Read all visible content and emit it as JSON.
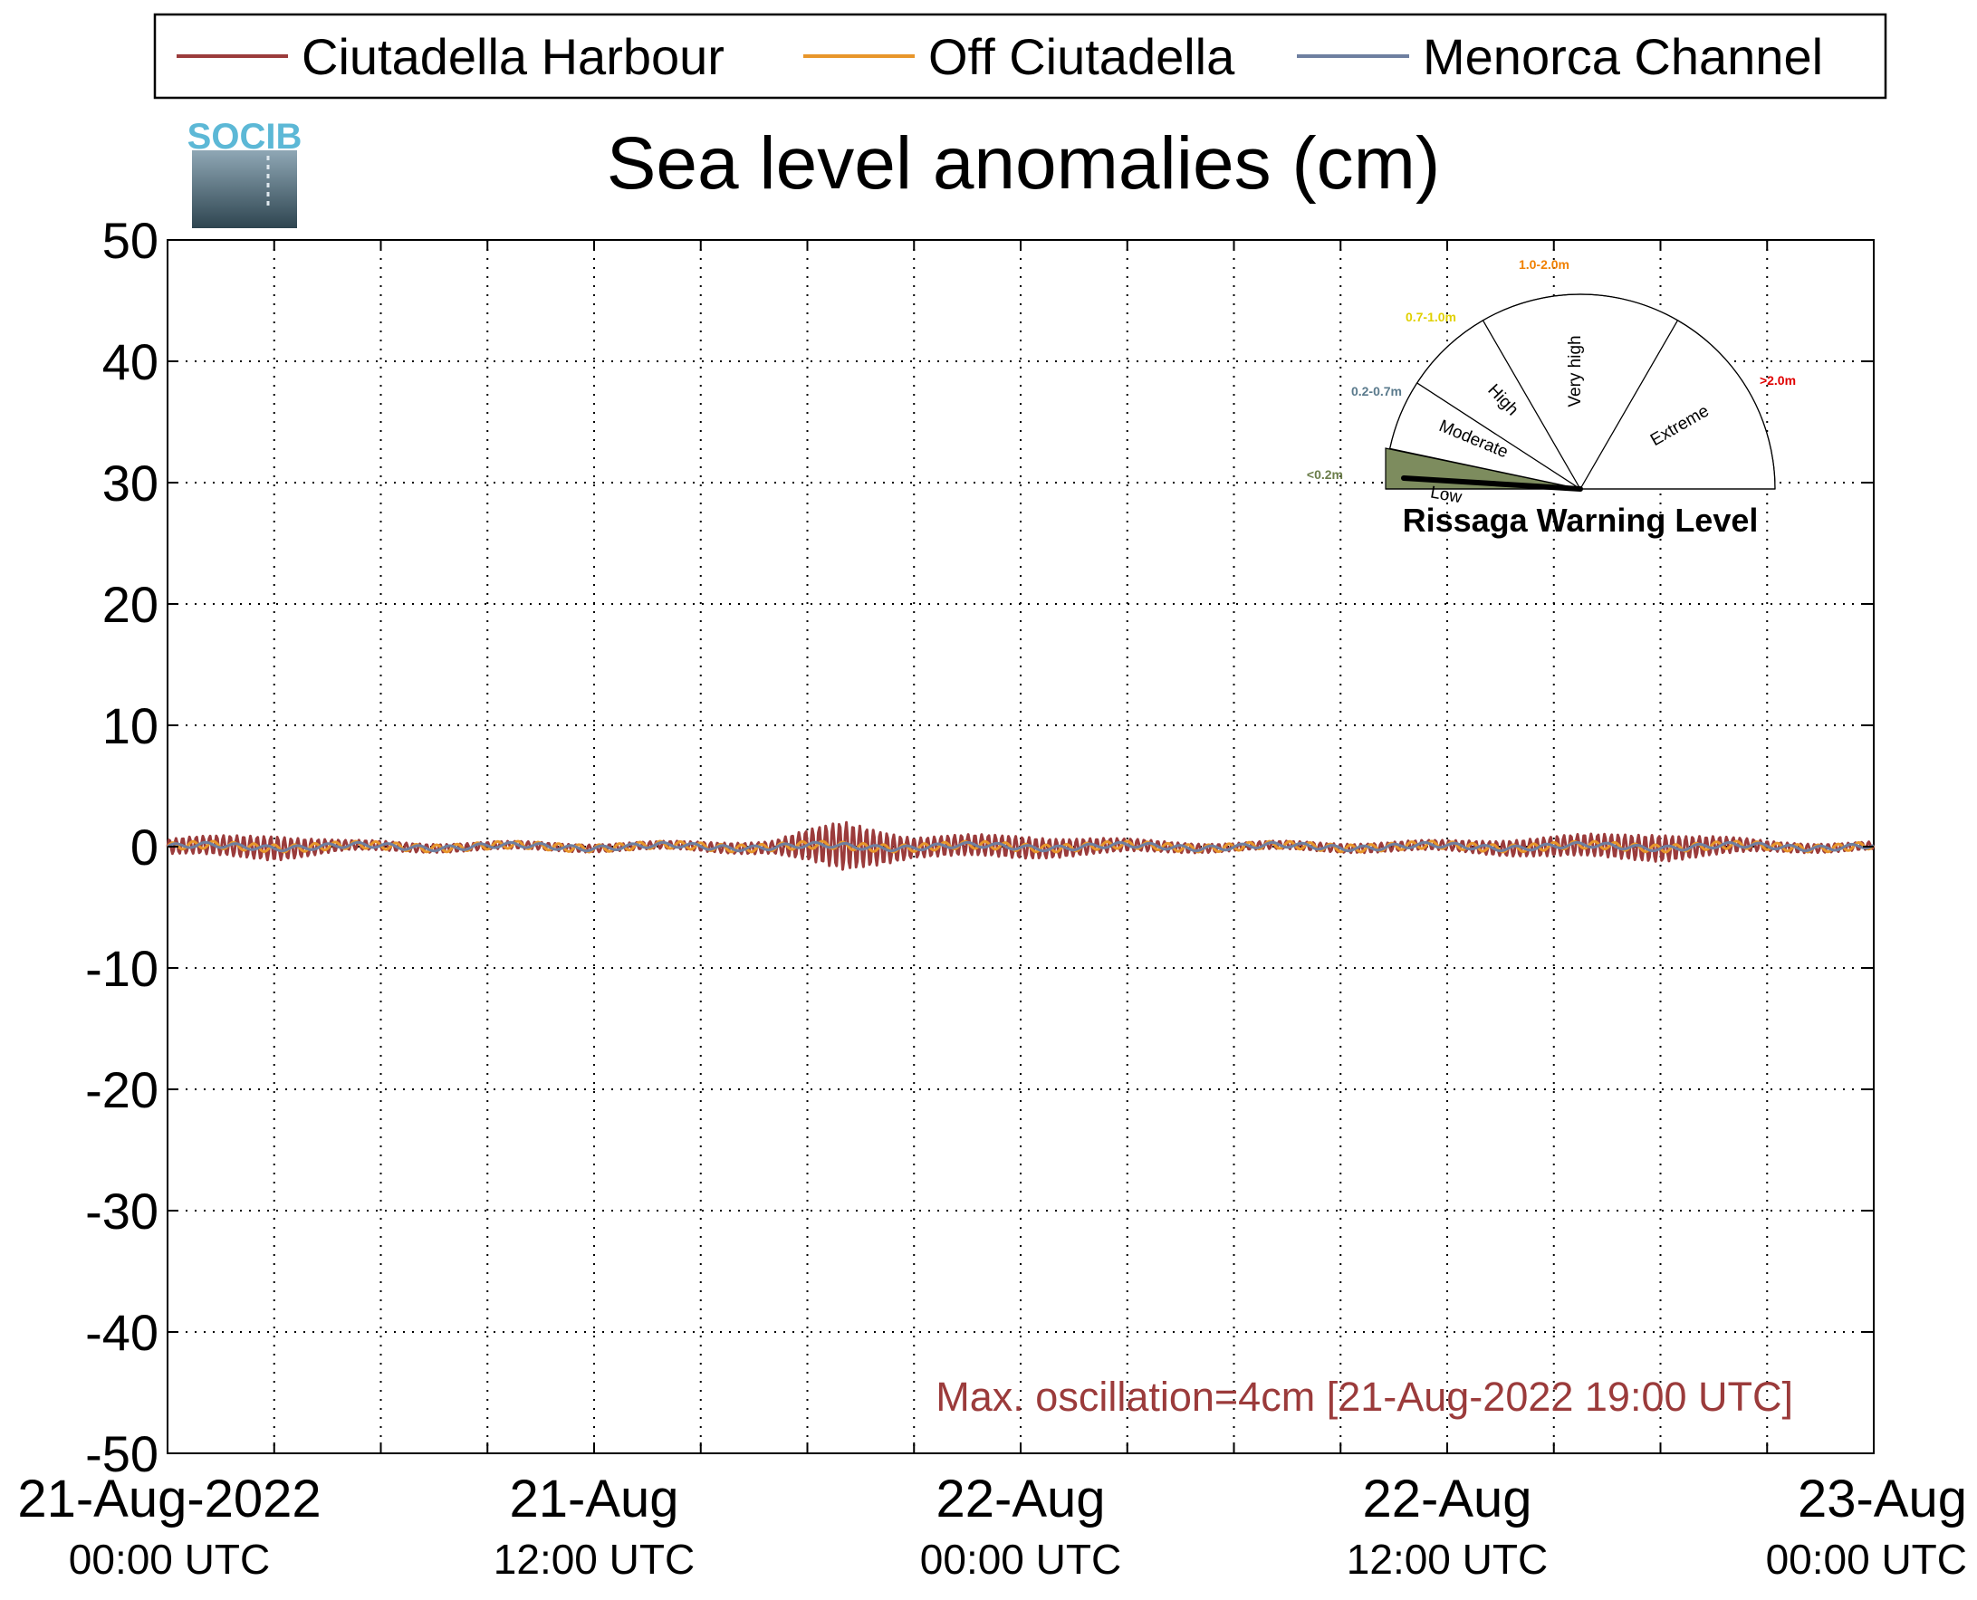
{
  "legend": {
    "entries": [
      {
        "name": "Ciutadella Harbour",
        "color": "#9b3b3b"
      },
      {
        "name": "Off Ciutadella",
        "color": "#e8962a"
      },
      {
        "name": "Menorca Channel",
        "color": "#6e7fa0"
      }
    ],
    "placement": "top"
  },
  "logo": {
    "text": "SOCIB",
    "icon": "socib-logo-icon"
  },
  "gauge": {
    "title": "Rissaga Warning Level",
    "levels": [
      {
        "name": "Low",
        "range": "<0.2m",
        "color": "#7d8c5e",
        "range_color": "#6b7d4a",
        "active": true
      },
      {
        "name": "Moderate",
        "range": "0.2-0.7m",
        "color": "#ffffff",
        "range_color": "#5a7a8c",
        "active": false
      },
      {
        "name": "High",
        "range": "0.7-1.0m",
        "color": "#ffffff",
        "range_color": "#e0d000",
        "active": false
      },
      {
        "name": "Very high",
        "range": "1.0-2.0m",
        "color": "#ffffff",
        "range_color": "#f08000",
        "active": false
      },
      {
        "name": "Extreme",
        "range": ">2.0m",
        "color": "#ffffff",
        "range_color": "#e00000",
        "active": false
      }
    ],
    "needle_level": "Low"
  },
  "annotation": {
    "text": "Max. oscillation=4cm [21-Aug-2022 19:00 UTC]",
    "color": "#9b3b3b"
  },
  "chart_data": {
    "type": "line",
    "title": "Sea level anomalies (cm)",
    "xlabel": "",
    "ylabel": "",
    "ylim": [
      -50,
      50
    ],
    "yticks": [
      -50,
      -40,
      -30,
      -20,
      -10,
      0,
      10,
      20,
      30,
      40,
      50
    ],
    "xlim": [
      "2022-08-21 00:00",
      "2022-08-23 00:00"
    ],
    "xticks": [
      {
        "at": "2022-08-21 00:00",
        "line1": "21-Aug-2022",
        "line2": "00:00 UTC"
      },
      {
        "at": "2022-08-21 12:00",
        "line1": "21-Aug",
        "line2": "12:00 UTC"
      },
      {
        "at": "2022-08-22 00:00",
        "line1": "22-Aug",
        "line2": "00:00 UTC"
      },
      {
        "at": "2022-08-22 12:00",
        "line1": "22-Aug",
        "line2": "12:00 UTC"
      },
      {
        "at": "2022-08-23 00:00",
        "line1": "23-Aug",
        "line2": "00:00 UTC"
      }
    ],
    "grid": true,
    "series": [
      {
        "name": "Ciutadella Harbour",
        "color": "#9b3b3b",
        "envelope_points": [
          {
            "x": "2022-08-21 00:00",
            "amp": 0.6
          },
          {
            "x": "2022-08-21 03:00",
            "amp": 1.0
          },
          {
            "x": "2022-08-21 05:00",
            "amp": 0.4
          },
          {
            "x": "2022-08-21 09:00",
            "amp": 0.3
          },
          {
            "x": "2022-08-21 14:00",
            "amp": 0.3
          },
          {
            "x": "2022-08-21 17:00",
            "amp": 0.5
          },
          {
            "x": "2022-08-21 19:00",
            "amp": 2.0
          },
          {
            "x": "2022-08-21 21:00",
            "amp": 0.8
          },
          {
            "x": "2022-08-22 00:00",
            "amp": 0.9
          },
          {
            "x": "2022-08-22 03:00",
            "amp": 0.5
          },
          {
            "x": "2022-08-22 06:00",
            "amp": 0.3
          },
          {
            "x": "2022-08-22 12:00",
            "amp": 0.4
          },
          {
            "x": "2022-08-22 15:00",
            "amp": 0.8
          },
          {
            "x": "2022-08-22 18:00",
            "amp": 1.1
          },
          {
            "x": "2022-08-22 21:00",
            "amp": 0.4
          },
          {
            "x": "2022-08-23 00:00",
            "amp": 0.3
          }
        ]
      },
      {
        "name": "Off Ciutadella",
        "color": "#e8962a",
        "envelope_points": [
          {
            "x": "2022-08-21 00:00",
            "amp": 0.3
          },
          {
            "x": "2022-08-21 12:00",
            "amp": 0.3
          },
          {
            "x": "2022-08-22 00:00",
            "amp": 0.3
          },
          {
            "x": "2022-08-22 12:00",
            "amp": 0.3
          },
          {
            "x": "2022-08-23 00:00",
            "amp": 0.3
          }
        ]
      },
      {
        "name": "Menorca Channel",
        "color": "#6e7fa0",
        "envelope_points": [
          {
            "x": "2022-08-21 00:00",
            "amp": 0.2
          },
          {
            "x": "2022-08-21 12:00",
            "amp": 0.2
          },
          {
            "x": "2022-08-22 00:00",
            "amp": 0.2
          },
          {
            "x": "2022-08-22 12:00",
            "amp": 0.2
          },
          {
            "x": "2022-08-23 00:00",
            "amp": 0.2
          }
        ]
      }
    ]
  }
}
